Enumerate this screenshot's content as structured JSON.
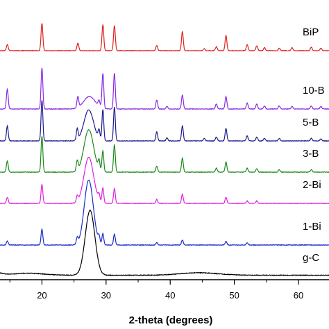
{
  "chart_data": {
    "type": "line",
    "title": "",
    "xlabel": "2-theta (degrees)",
    "ylabel": "",
    "xlim": [
      10,
      65
    ],
    "xticks": [
      20,
      30,
      40,
      50,
      60
    ],
    "grid": false,
    "legend": "inline-right",
    "series": [
      {
        "name": "BiP",
        "color": "#e02020",
        "baseline": 0.0,
        "noise": 0.01,
        "peaks": [
          [
            14.6,
            0.12,
            0.14
          ],
          [
            20.0,
            0.55,
            0.14
          ],
          [
            25.6,
            0.15,
            0.14
          ],
          [
            29.5,
            0.52,
            0.14
          ],
          [
            31.3,
            0.5,
            0.14
          ],
          [
            37.9,
            0.1,
            0.14
          ],
          [
            41.9,
            0.38,
            0.14
          ],
          [
            45.3,
            0.04,
            0.14
          ],
          [
            47.2,
            0.08,
            0.14
          ],
          [
            48.7,
            0.3,
            0.14
          ],
          [
            52.0,
            0.12,
            0.14
          ],
          [
            53.5,
            0.1,
            0.14
          ],
          [
            54.7,
            0.06,
            0.14
          ],
          [
            57.0,
            0.05,
            0.14
          ],
          [
            59.0,
            0.06,
            0.14
          ],
          [
            62.0,
            0.07,
            0.14
          ],
          [
            63.5,
            0.05,
            0.14
          ]
        ]
      },
      {
        "name": "10-B",
        "color": "#8a2be2",
        "baseline": 0.0,
        "noise": 0.01,
        "peaks": [
          [
            14.6,
            0.4,
            0.14
          ],
          [
            20.0,
            0.82,
            0.14
          ],
          [
            25.6,
            0.22,
            0.14
          ],
          [
            27.4,
            0.25,
            0.9
          ],
          [
            28.9,
            0.12,
            0.14
          ],
          [
            29.5,
            0.7,
            0.14
          ],
          [
            31.3,
            0.72,
            0.14
          ],
          [
            37.9,
            0.18,
            0.14
          ],
          [
            39.5,
            0.05,
            0.14
          ],
          [
            41.9,
            0.28,
            0.14
          ],
          [
            47.2,
            0.1,
            0.14
          ],
          [
            48.7,
            0.25,
            0.14
          ],
          [
            52.0,
            0.12,
            0.14
          ],
          [
            53.5,
            0.1,
            0.14
          ],
          [
            54.7,
            0.06,
            0.14
          ],
          [
            57.0,
            0.06,
            0.14
          ],
          [
            59.0,
            0.05,
            0.14
          ],
          [
            62.0,
            0.06,
            0.14
          ],
          [
            63.5,
            0.05,
            0.14
          ]
        ]
      },
      {
        "name": "5-B",
        "color": "#1c1c8c",
        "baseline": 0.0,
        "noise": 0.01,
        "peaks": [
          [
            14.6,
            0.3,
            0.14
          ],
          [
            20.0,
            0.82,
            0.14
          ],
          [
            25.5,
            0.22,
            0.14
          ],
          [
            27.3,
            0.62,
            0.75
          ],
          [
            28.9,
            0.18,
            0.14
          ],
          [
            29.5,
            0.62,
            0.14
          ],
          [
            31.3,
            0.68,
            0.14
          ],
          [
            37.9,
            0.18,
            0.14
          ],
          [
            39.5,
            0.06,
            0.14
          ],
          [
            41.9,
            0.3,
            0.14
          ],
          [
            45.3,
            0.05,
            0.14
          ],
          [
            47.2,
            0.08,
            0.14
          ],
          [
            48.7,
            0.25,
            0.14
          ],
          [
            52.0,
            0.1,
            0.14
          ],
          [
            53.5,
            0.08,
            0.14
          ],
          [
            54.7,
            0.05,
            0.14
          ],
          [
            57.0,
            0.05,
            0.14
          ],
          [
            62.0,
            0.05,
            0.14
          ],
          [
            63.5,
            0.04,
            0.14
          ]
        ]
      },
      {
        "name": "3-B",
        "color": "#1a8a1a",
        "baseline": 0.0,
        "noise": 0.01,
        "peaks": [
          [
            14.6,
            0.22,
            0.14
          ],
          [
            20.0,
            0.72,
            0.14
          ],
          [
            25.5,
            0.2,
            0.14
          ],
          [
            27.3,
            0.85,
            0.75
          ],
          [
            28.9,
            0.18,
            0.14
          ],
          [
            29.5,
            0.42,
            0.14
          ],
          [
            31.3,
            0.55,
            0.14
          ],
          [
            37.9,
            0.12,
            0.14
          ],
          [
            41.9,
            0.28,
            0.14
          ],
          [
            47.2,
            0.08,
            0.14
          ],
          [
            48.7,
            0.2,
            0.14
          ],
          [
            52.0,
            0.08,
            0.14
          ],
          [
            53.5,
            0.07,
            0.14
          ],
          [
            57.0,
            0.05,
            0.14
          ],
          [
            62.0,
            0.05,
            0.14
          ]
        ]
      },
      {
        "name": "2-Bi",
        "color": "#e020e0",
        "baseline": 0.0,
        "noise": 0.01,
        "peaks": [
          [
            14.6,
            0.12,
            0.14
          ],
          [
            20.0,
            0.38,
            0.14
          ],
          [
            25.5,
            0.12,
            0.14
          ],
          [
            27.3,
            0.92,
            0.75
          ],
          [
            28.9,
            0.12,
            0.14
          ],
          [
            29.5,
            0.3,
            0.14
          ],
          [
            31.3,
            0.3,
            0.14
          ],
          [
            37.9,
            0.08,
            0.14
          ],
          [
            41.9,
            0.18,
            0.14
          ],
          [
            48.7,
            0.12,
            0.14
          ],
          [
            52.0,
            0.05,
            0.14
          ],
          [
            53.5,
            0.05,
            0.14
          ]
        ]
      },
      {
        "name": "1-Bi",
        "color": "#1a2ac8",
        "baseline": 0.0,
        "noise": 0.01,
        "peaks": [
          [
            14.6,
            0.08,
            0.14
          ],
          [
            20.0,
            0.32,
            0.14
          ],
          [
            25.5,
            0.12,
            0.14
          ],
          [
            27.3,
            1.3,
            0.7
          ],
          [
            28.9,
            0.12,
            0.14
          ],
          [
            29.5,
            0.22,
            0.14
          ],
          [
            31.3,
            0.22,
            0.14
          ],
          [
            37.9,
            0.05,
            0.14
          ],
          [
            41.9,
            0.1,
            0.14
          ],
          [
            48.7,
            0.07,
            0.14
          ],
          [
            52.0,
            0.04,
            0.14
          ]
        ]
      },
      {
        "name": "g-C",
        "color": "#000000",
        "baseline": 0.02,
        "noise": 0.012,
        "peaks": [
          [
            13.1,
            0.04,
            0.8
          ],
          [
            17.8,
            0.04,
            2.5
          ],
          [
            27.5,
            1.3,
            0.75
          ],
          [
            44.5,
            0.05,
            3.0
          ]
        ]
      }
    ]
  }
}
